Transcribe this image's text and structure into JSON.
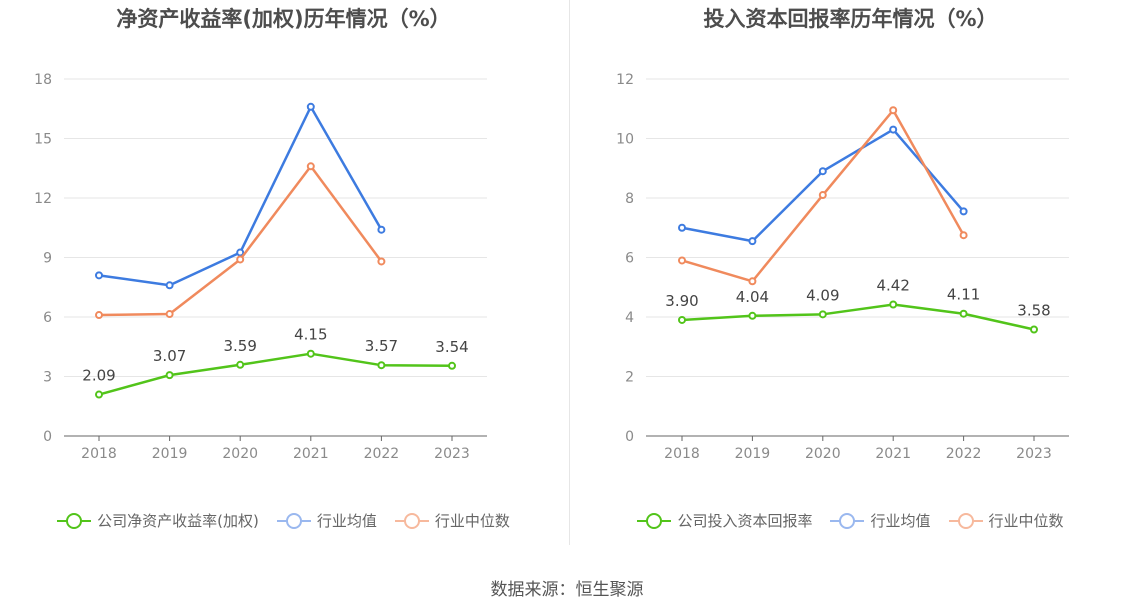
{
  "charts": [
    {
      "id": "left",
      "title": "净资产收益率(加权)历年情况（%）",
      "chart_data": {
        "type": "line",
        "title": "净资产收益率(加权)历年情况（%）",
        "categories": [
          "2018",
          "2019",
          "2020",
          "2021",
          "2022",
          "2023"
        ],
        "ylim": [
          0,
          18
        ],
        "yticks": [
          0,
          3,
          6,
          9,
          12,
          15,
          18
        ],
        "grid": true,
        "legend_position": "bottom",
        "series": [
          {
            "name": "公司净资产收益率(加权)",
            "color": "#52c41a",
            "values": [
              2.09,
              3.07,
              3.59,
              4.15,
              3.57,
              3.54
            ],
            "labels": [
              "2.09",
              "3.07",
              "3.59",
              "4.15",
              "3.57",
              "3.54"
            ]
          },
          {
            "name": "行业均值",
            "color": "#3d7be0",
            "values": [
              8.1,
              7.6,
              9.25,
              16.6,
              10.4,
              null
            ]
          },
          {
            "name": "行业中位数",
            "color": "#f08a5d",
            "values": [
              6.1,
              6.15,
              8.9,
              13.6,
              8.8,
              null
            ]
          }
        ]
      }
    },
    {
      "id": "right",
      "title": "投入资本回报率历年情况（%）",
      "chart_data": {
        "type": "line",
        "title": "投入资本回报率历年情况（%）",
        "categories": [
          "2018",
          "2019",
          "2020",
          "2021",
          "2022",
          "2023"
        ],
        "ylim": [
          0,
          12
        ],
        "yticks": [
          0,
          2,
          4,
          6,
          8,
          10,
          12
        ],
        "grid": true,
        "legend_position": "bottom",
        "series": [
          {
            "name": "公司投入资本回报率",
            "color": "#52c41a",
            "values": [
              3.9,
              4.04,
              4.09,
              4.42,
              4.11,
              3.58
            ],
            "labels": [
              "3.90",
              "4.04",
              "4.09",
              "4.42",
              "4.11",
              "3.58"
            ]
          },
          {
            "name": "行业均值",
            "color": "#3d7be0",
            "values": [
              7.0,
              6.55,
              8.9,
              10.3,
              7.55,
              null
            ]
          },
          {
            "name": "行业中位数",
            "color": "#f08a5d",
            "values": [
              5.9,
              5.2,
              8.1,
              10.95,
              6.75,
              null
            ]
          }
        ]
      }
    }
  ],
  "source": "数据来源：恒生聚源"
}
